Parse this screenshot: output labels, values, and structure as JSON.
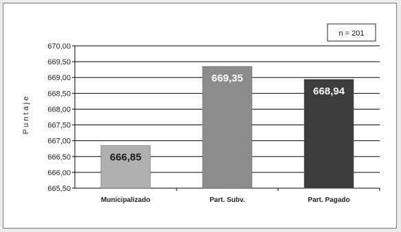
{
  "chart_data": {
    "type": "bar",
    "ylabel": "Puntaje",
    "annotation": "n = 201",
    "categories": [
      "Municipalizado",
      "Part. Subv.",
      "Part. Pagado"
    ],
    "values": [
      666.85,
      669.35,
      668.94
    ],
    "value_labels": [
      "666,85",
      "669,35",
      "668,94"
    ],
    "bar_colors": [
      "#b0b0b0",
      "#8c8c8c",
      "#3c3c3c"
    ],
    "label_colors": [
      "#1a1a1a",
      "#ffffff",
      "#ffffff"
    ],
    "ylim": [
      665.5,
      670.0
    ],
    "yticks": [
      665.5,
      666.0,
      666.5,
      667.0,
      667.5,
      668.0,
      668.5,
      669.0,
      669.5,
      670.0
    ],
    "ytick_labels": [
      "665,50",
      "666,00",
      "666,50",
      "667,00",
      "667,50",
      "668,00",
      "668,50",
      "669,00",
      "669,50",
      "670,00"
    ],
    "grid": true,
    "legend": "none"
  }
}
